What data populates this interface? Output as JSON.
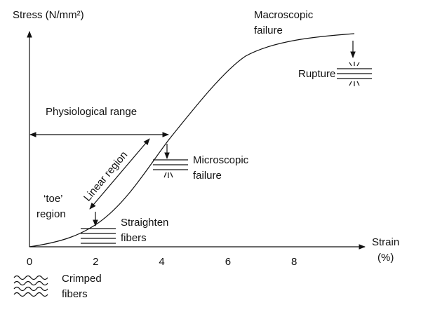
{
  "y_axis_label": "Stress (N/mm²)",
  "x_axis_label": [
    "Strain",
    "(%)"
  ],
  "x_tick_labels": [
    0,
    2,
    4,
    6,
    8
  ],
  "annotations": {
    "macroscopic_failure": [
      "Macroscopic",
      "failure"
    ],
    "rupture": "Rupture",
    "physiological_range": "Physiological range",
    "linear_region": "Linear region",
    "microscopic_failure": [
      "Microscopic",
      "failure"
    ],
    "toe_region": [
      "‘toe’",
      "region"
    ],
    "straighten_fibers": [
      "Straighten",
      "fibers"
    ],
    "crimped_fibers": [
      "Crimped",
      "fibers"
    ]
  }
}
